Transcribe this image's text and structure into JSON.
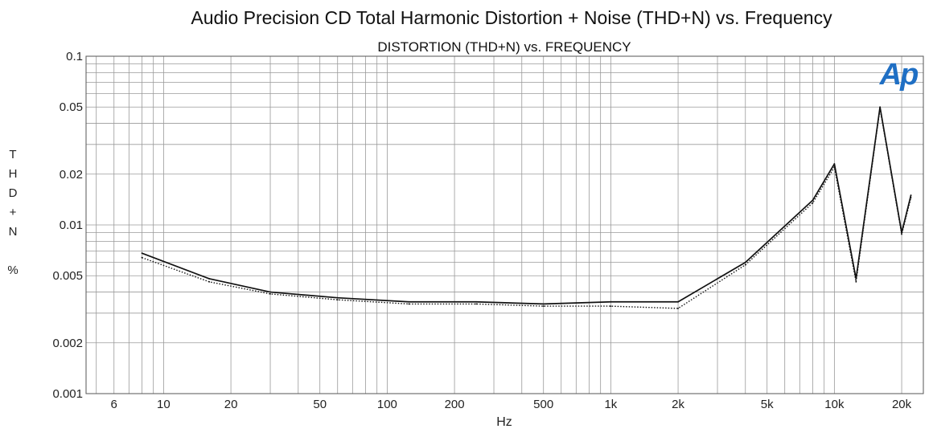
{
  "chart_data": {
    "type": "line",
    "title": "Audio Precision   CD Total Harmonic  Distortion + Noise (THD+N) vs. Frequency",
    "subtitle": "DISTORTION (THD+N)  vs.  FREQUENCY",
    "xlabel": "Hz",
    "ylabel_letters": [
      "T",
      "H",
      "D",
      "+",
      "N",
      "",
      "%"
    ],
    "xscale": "log",
    "yscale": "log",
    "xlim": [
      4.5,
      25000
    ],
    "ylim": [
      0.001,
      0.1
    ],
    "grid": true,
    "x_ticks": [
      {
        "value": 6,
        "label": "6"
      },
      {
        "value": 10,
        "label": "10"
      },
      {
        "value": 20,
        "label": "20"
      },
      {
        "value": 50,
        "label": "50"
      },
      {
        "value": 100,
        "label": "100"
      },
      {
        "value": 200,
        "label": "200"
      },
      {
        "value": 500,
        "label": "500"
      },
      {
        "value": 1000,
        "label": "1k"
      },
      {
        "value": 2000,
        "label": "2k"
      },
      {
        "value": 5000,
        "label": "5k"
      },
      {
        "value": 10000,
        "label": "10k"
      },
      {
        "value": 20000,
        "label": "20k"
      }
    ],
    "y_ticks": [
      {
        "value": 0.1,
        "label": "0.1"
      },
      {
        "value": 0.05,
        "label": "0.05"
      },
      {
        "value": 0.02,
        "label": "0.02"
      },
      {
        "value": 0.01,
        "label": "0.01"
      },
      {
        "value": 0.005,
        "label": "0.005"
      },
      {
        "value": 0.002,
        "label": "0.002"
      },
      {
        "value": 0.001,
        "label": "0.001"
      }
    ],
    "series": [
      {
        "style": "solid",
        "color": "#111111",
        "x": [
          8,
          16,
          30,
          60,
          125,
          250,
          500,
          1000,
          2000,
          4000,
          8000,
          10000,
          12500,
          16000,
          20000,
          22000
        ],
        "y": [
          0.0068,
          0.0048,
          0.004,
          0.0037,
          0.0035,
          0.0035,
          0.0034,
          0.0035,
          0.0035,
          0.006,
          0.014,
          0.023,
          0.0048,
          0.05,
          0.009,
          0.015
        ]
      },
      {
        "style": "dotted",
        "color": "#111111",
        "x": [
          8,
          16,
          30,
          60,
          125,
          250,
          500,
          1000,
          2000,
          4000,
          8000,
          10000,
          12500,
          16000,
          20000,
          22000
        ],
        "y": [
          0.0064,
          0.0046,
          0.0039,
          0.0036,
          0.0034,
          0.0034,
          0.0033,
          0.0033,
          0.0032,
          0.0058,
          0.0135,
          0.022,
          0.0046,
          0.049,
          0.0088,
          0.0145
        ]
      }
    ],
    "logo": {
      "text": "Ap",
      "color": "#1f6fc4"
    }
  }
}
